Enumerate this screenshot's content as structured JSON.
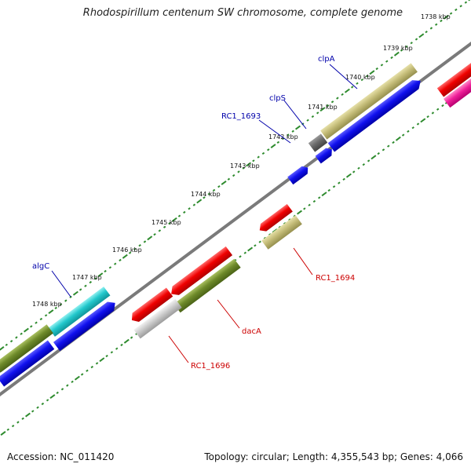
{
  "title": "Rhodospirillum centenum SW chromosome, complete genome",
  "footer": {
    "accession": "Accession: NC_011420",
    "topology": "Topology: circular; Length: 4,355,543 bp; Genes: 4,066"
  },
  "colors": {
    "backbone": "#7a7a7a",
    "ticks": "#2e8b2e",
    "forward_label": "#0000aa",
    "reverse_label": "#cc0000"
  },
  "tick_labels": [
    "1738 kbp",
    "1739 kbp",
    "1740 kbp",
    "1741 kbp",
    "1742 kbp",
    "1743 kbp",
    "1744 kbp",
    "1745 kbp",
    "1746 kbp",
    "1747 kbp",
    "1748 kbp"
  ],
  "gene_labels": [
    {
      "name": "clpA",
      "strand": "forward"
    },
    {
      "name": "clpS",
      "strand": "forward"
    },
    {
      "name": "RC1_1693",
      "strand": "forward"
    },
    {
      "name": "algC",
      "strand": "forward"
    },
    {
      "name": "RC1_1694",
      "strand": "reverse"
    },
    {
      "name": "dacA",
      "strand": "reverse"
    },
    {
      "name": "RC1_1696",
      "strand": "reverse"
    }
  ]
}
